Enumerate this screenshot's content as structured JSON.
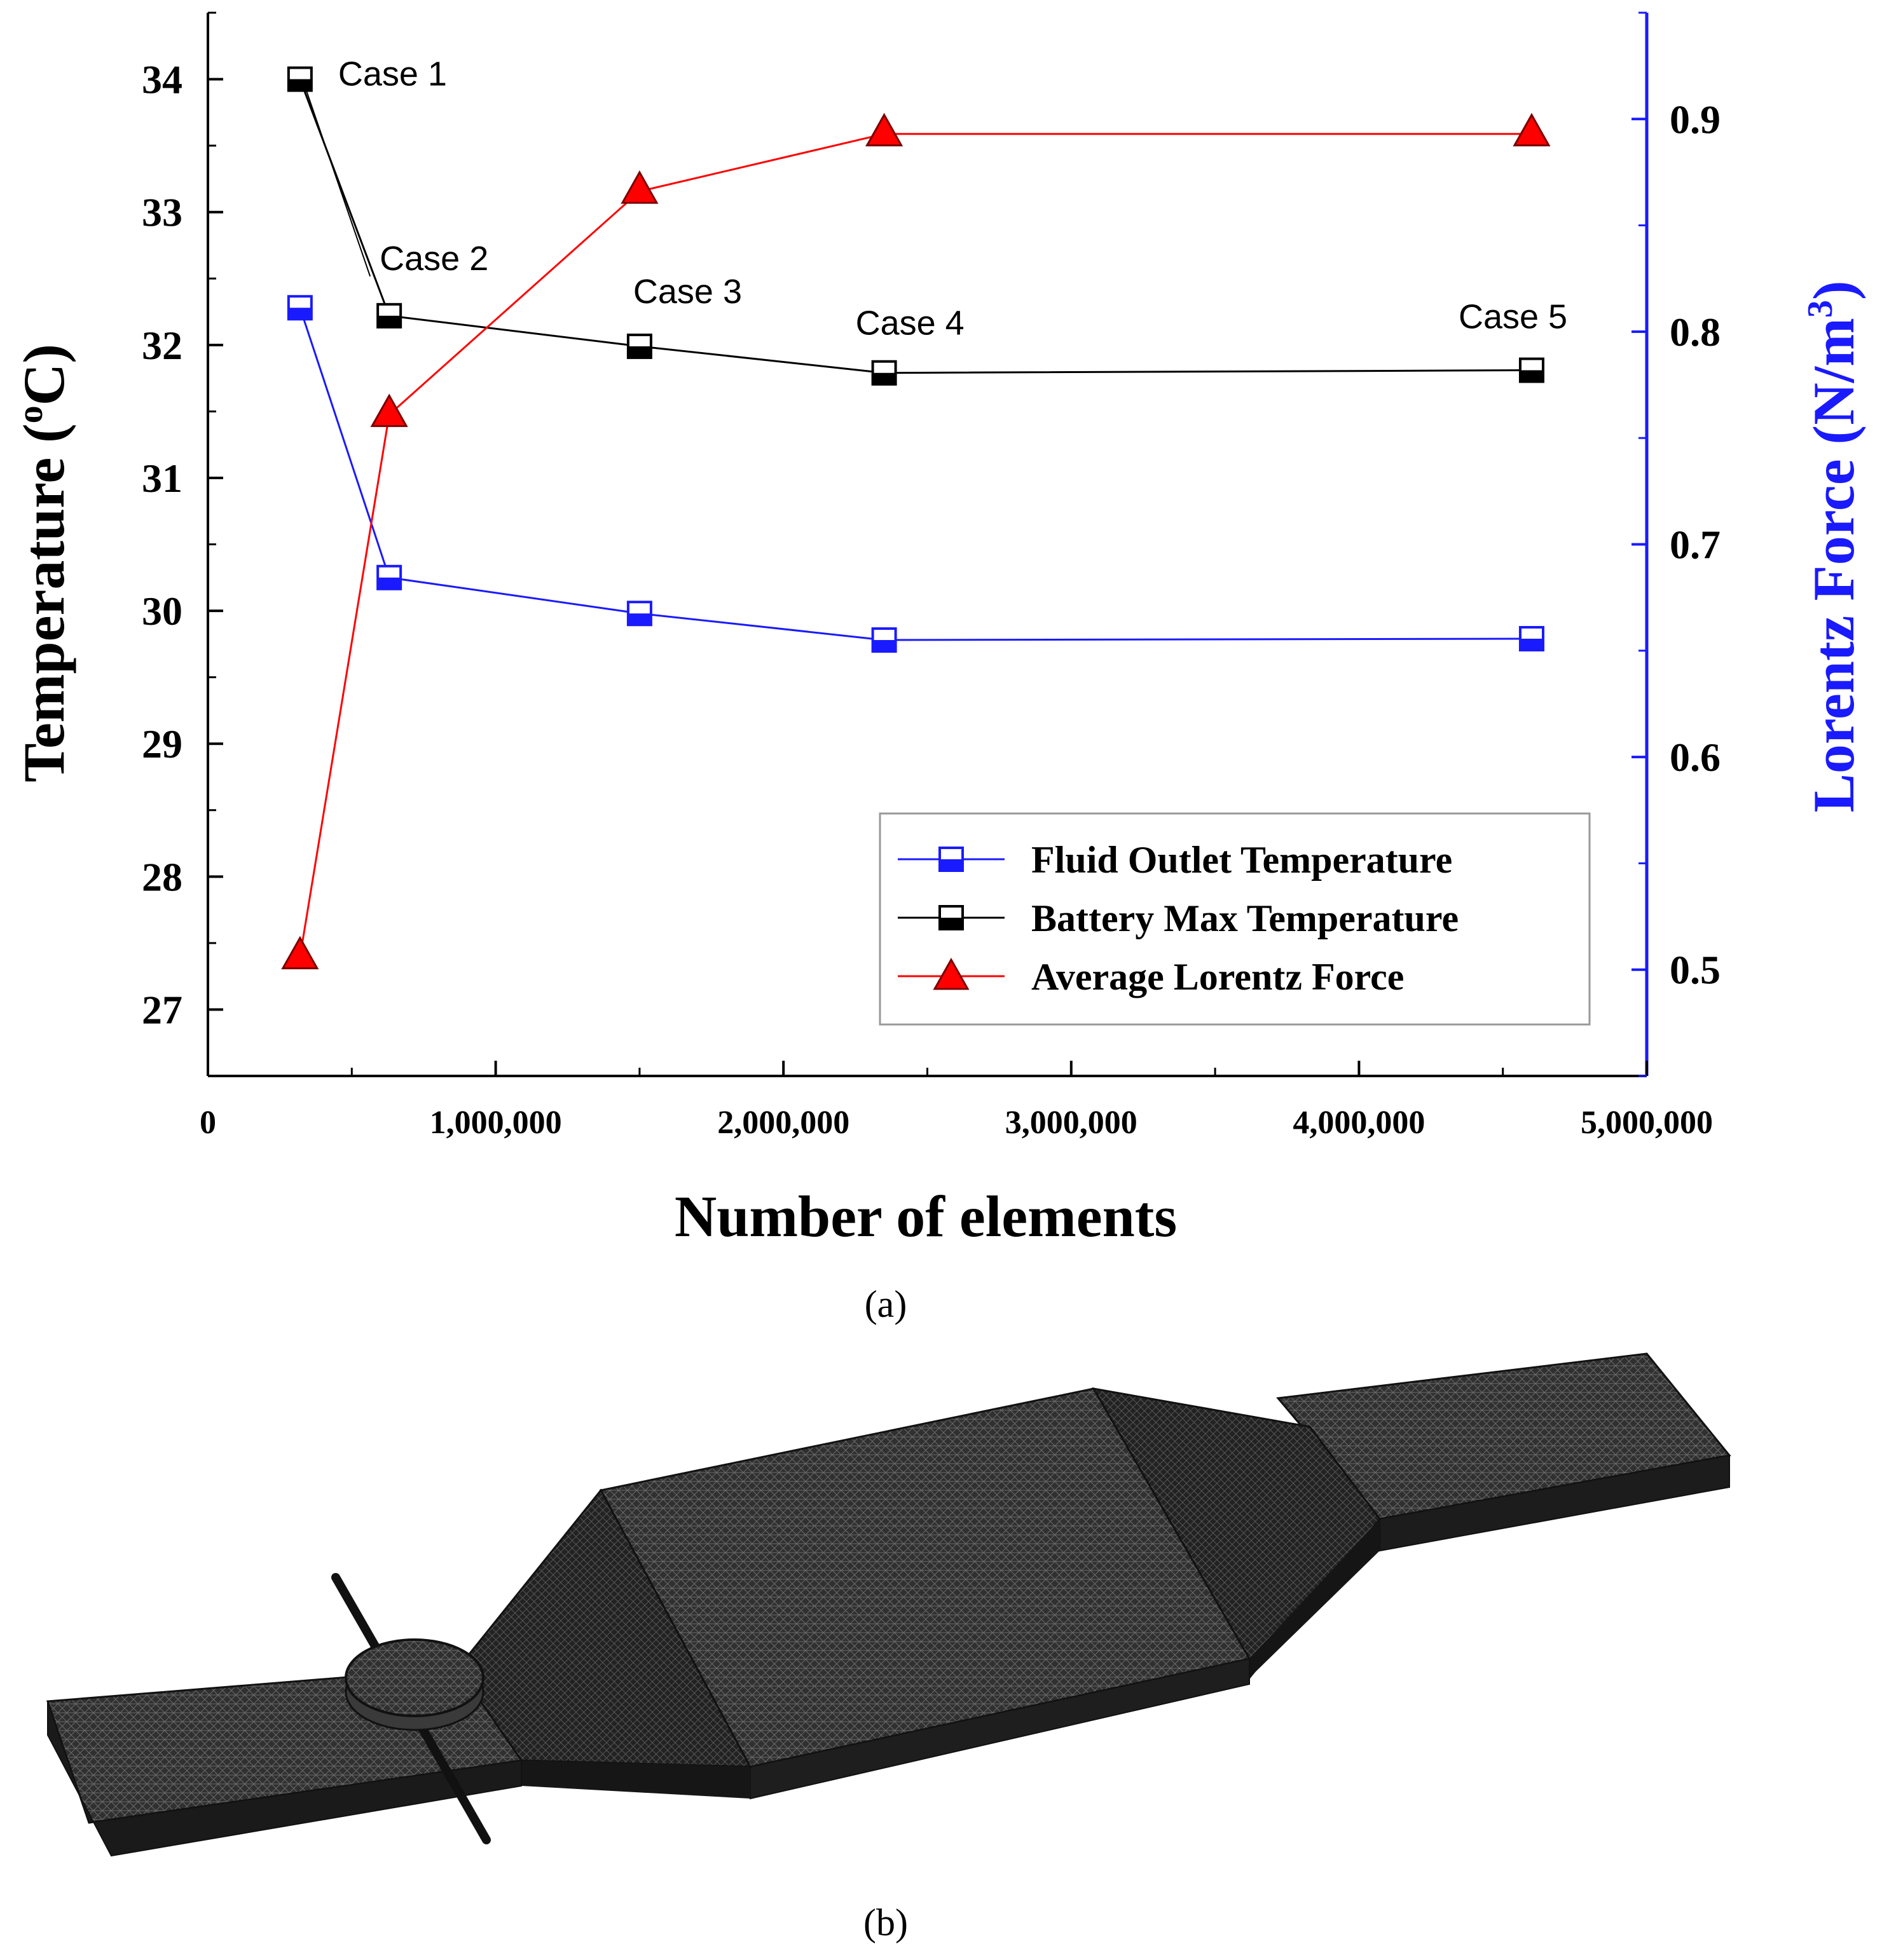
{
  "chart_data": {
    "type": "line",
    "title": "",
    "xlabel": "Number of elements",
    "ylabel_left_main": "Temperature (",
    "ylabel_left_sup": "o",
    "ylabel_left_tail": "C)",
    "ylabel_right_main": "Lorentz Force (N/m",
    "ylabel_right_sup": "3",
    "ylabel_right_tail": ")",
    "xlim": [
      0,
      5000000
    ],
    "ylim_left": [
      26.5,
      34.5
    ],
    "ylim_right": [
      0.45,
      0.95
    ],
    "x_ticks": [
      {
        "value": 0,
        "label": "0"
      },
      {
        "value": 1000000,
        "label": "1,000,000"
      },
      {
        "value": 2000000,
        "label": "2,000,000"
      },
      {
        "value": 3000000,
        "label": "3,000,000"
      },
      {
        "value": 4000000,
        "label": "4,000,000"
      },
      {
        "value": 5000000,
        "label": "5,000,000"
      }
    ],
    "y_left_ticks": [
      {
        "value": 27,
        "label": "27"
      },
      {
        "value": 28,
        "label": "28"
      },
      {
        "value": 29,
        "label": "29"
      },
      {
        "value": 30,
        "label": "30"
      },
      {
        "value": 31,
        "label": "31"
      },
      {
        "value": 32,
        "label": "32"
      },
      {
        "value": 33,
        "label": "33"
      },
      {
        "value": 34,
        "label": "34"
      }
    ],
    "y_right_ticks": [
      {
        "value": 0.5,
        "label": "0.5"
      },
      {
        "value": 0.6,
        "label": "0.6"
      },
      {
        "value": 0.7,
        "label": "0.7"
      },
      {
        "value": 0.8,
        "label": "0.8"
      },
      {
        "value": 0.9,
        "label": "0.9"
      }
    ],
    "x": [
      320000,
      630000,
      1500000,
      2350000,
      4600000
    ],
    "series": [
      {
        "name": "Fluid Outlet Temperature",
        "axis": "left",
        "color": "#1a1aff",
        "marker": "half-square",
        "values": [
          32.28,
          30.25,
          29.98,
          29.78,
          29.79
        ]
      },
      {
        "name": "Battery Max Temperature",
        "axis": "left",
        "color": "#000000",
        "marker": "half-square",
        "values": [
          34.0,
          32.22,
          31.99,
          31.79,
          31.81
        ]
      },
      {
        "name": "Average Lorentz Force",
        "axis": "right",
        "color": "#ff0000",
        "marker": "triangle",
        "values": [
          0.506,
          0.761,
          0.866,
          0.893,
          0.893
        ]
      }
    ],
    "annotations": [
      "Case 1",
      "Case 2",
      "Case 3",
      "Case 4",
      "Case 5"
    ],
    "legend_position": "bottom-right",
    "grid": false
  },
  "panel_labels": {
    "a": "(a)",
    "b": "(b)"
  },
  "colors": {
    "left_axis": "#000000",
    "right_axis": "#1a1aff",
    "mesh_dark": "#2b2b2b",
    "mesh_light": "#4a4a4a"
  }
}
